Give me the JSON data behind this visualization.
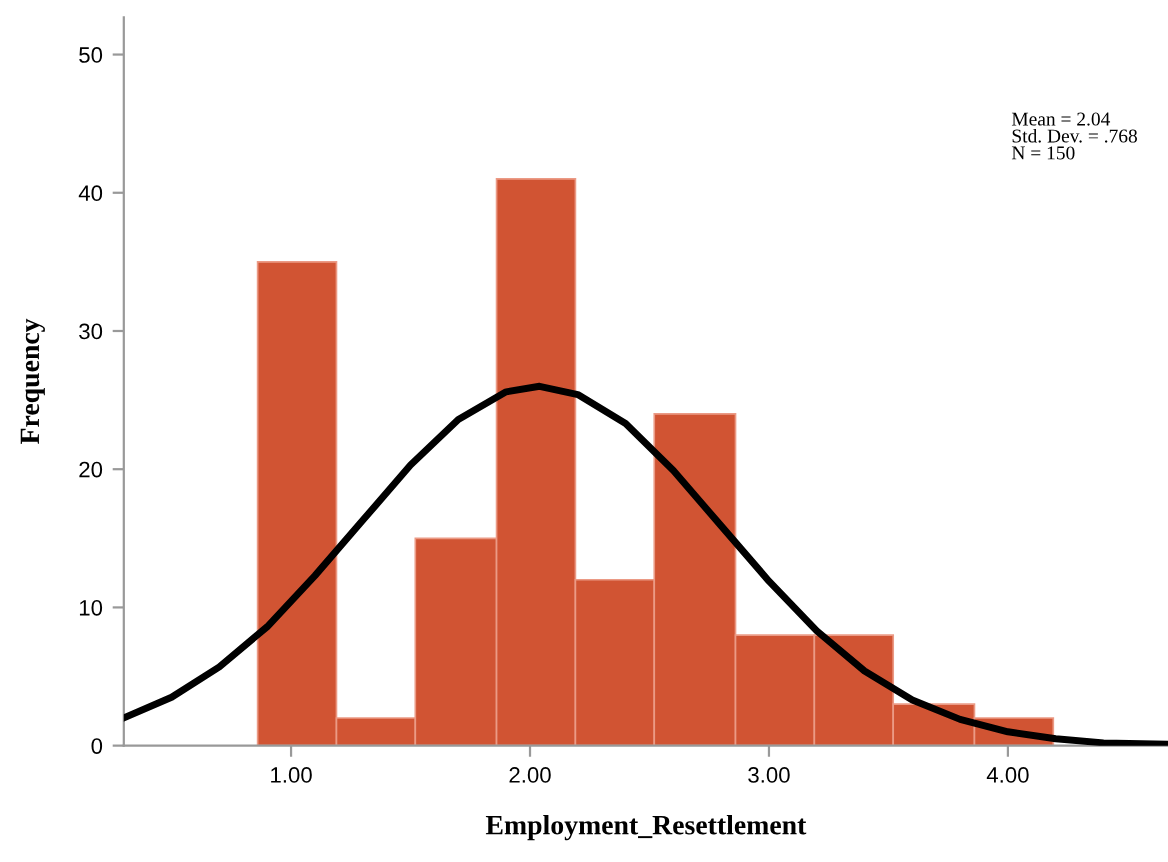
{
  "chart_data": {
    "type": "histogram",
    "xlabel": "Employment_Resettlement",
    "ylabel": "Frequency",
    "annotations": [
      "Mean = 2.04\nStd. Dev. = .768\nN = 150"
    ],
    "series": [
      {
        "color": "#d15433",
        "bins": [
          0.86,
          1.19,
          1.52,
          1.86,
          2.19,
          2.52,
          2.86,
          3.19,
          3.52,
          3.86,
          4.19
        ],
        "values": [
          35,
          2,
          15,
          41,
          12,
          24,
          8,
          8,
          3,
          2
        ]
      },
      {
        "type": "line",
        "color": "#000000",
        "x": [
          0.3,
          0.5,
          0.7,
          0.9,
          1.1,
          1.3,
          1.5,
          1.7,
          1.9,
          2.04,
          2.2,
          2.4,
          2.6,
          2.8,
          3.0,
          3.2,
          3.4,
          3.6,
          3.8,
          4.0,
          4.2,
          4.4,
          4.67
        ],
        "values": [
          2.0,
          3.5,
          5.7,
          8.6,
          12.3,
          16.3,
          20.3,
          23.6,
          25.6,
          26.0,
          25.4,
          23.3,
          19.9,
          15.9,
          11.9,
          8.3,
          5.4,
          3.3,
          1.9,
          1.0,
          0.5,
          0.2,
          0.1
        ]
      }
    ],
    "xlim": [
      0.3,
      4.67
    ],
    "xticks": [
      {
        "value": 1,
        "label": "1.00"
      },
      {
        "value": 2,
        "label": "2.00"
      },
      {
        "value": 3,
        "label": "3.00"
      },
      {
        "value": 4,
        "label": "4.00"
      }
    ],
    "ylim": [
      0,
      52.7
    ],
    "yticks": [
      0,
      10,
      20,
      30,
      40,
      50
    ],
    "grid": false,
    "legend": false
  }
}
